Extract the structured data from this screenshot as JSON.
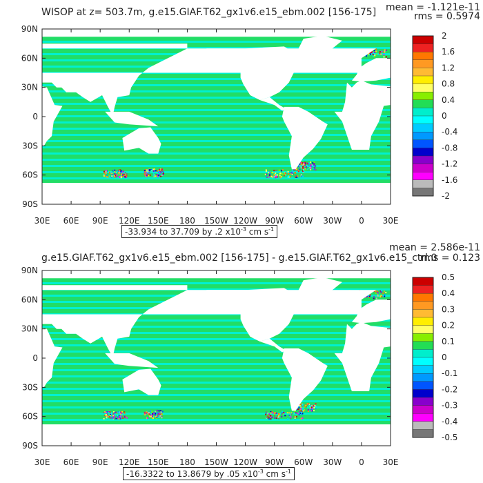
{
  "colors": {
    "land": "#ffffff",
    "ocean_zero_pos": "#22dd66",
    "ocean_zero_neg": "#00f0d0",
    "frame": "#222222",
    "scale_bands": [
      "#cc0000",
      "#ee2222",
      "#ff7700",
      "#ff9922",
      "#ffbb33",
      "#ffee00",
      "#ffff66",
      "#88ee00",
      "#22dd55",
      "#00eecc",
      "#00ffff",
      "#00ccff",
      "#0099ff",
      "#0055ff",
      "#0000cc",
      "#8800cc",
      "#cc00cc",
      "#ff00ff",
      "#bbbbbb",
      "#777777"
    ]
  },
  "chart_data": [
    {
      "type": "heatmap",
      "title": "WISOP at z= 503.7m, g.e15.GIAF.T62_gx1v6.e15_ebm.002 [156-175]",
      "mean_text": "mean = -1.121e-11",
      "rms_text": "rms = 0.5974",
      "range_text": "-33.934 to 37.709 by .2 x10",
      "range_exp": "-3",
      "range_unit": " cm s",
      "range_unit_exp": "-1",
      "x_ticks": [
        "30E",
        "60E",
        "90E",
        "120E",
        "150E",
        "180",
        "150W",
        "120W",
        "90W",
        "60W",
        "30W",
        "0",
        "30E"
      ],
      "y_ticks": [
        "90N",
        "60N",
        "30N",
        "0",
        "30S",
        "60S",
        "90S"
      ],
      "colorbar_labels": [
        "2",
        "1.6",
        "1.2",
        "0.8",
        "0.4",
        "0",
        "-0.4",
        "-0.8",
        "-1.2",
        "-1.6",
        "-2"
      ],
      "colorbar_range": [
        -2,
        2
      ],
      "colorbar_levels": 20
    },
    {
      "type": "heatmap",
      "title": "g.e15.GIAF.T62_gx1v6.e15_ebm.002 [156-175] - g.e15.GIAF.T62_gx1v6.e15_ctrl.0",
      "mean_text": "mean = 2.586e-11",
      "rms_text": "rms = 0.123",
      "range_text": "-16.3322 to 13.8679 by .05 x10",
      "range_exp": "-3",
      "range_unit": " cm s",
      "range_unit_exp": "-1",
      "x_ticks": [
        "30E",
        "60E",
        "90E",
        "120E",
        "150E",
        "180",
        "150W",
        "120W",
        "90W",
        "60W",
        "30W",
        "0",
        "30E"
      ],
      "y_ticks": [
        "90N",
        "60N",
        "30N",
        "0",
        "30S",
        "60S",
        "90S"
      ],
      "colorbar_labels": [
        "0.5",
        "0.4",
        "0.3",
        "0.2",
        "0.1",
        "0",
        "-0.1",
        "-0.2",
        "-0.3",
        "-0.4",
        "-0.5"
      ],
      "colorbar_range": [
        -0.5,
        0.5
      ],
      "colorbar_levels": 20
    }
  ]
}
